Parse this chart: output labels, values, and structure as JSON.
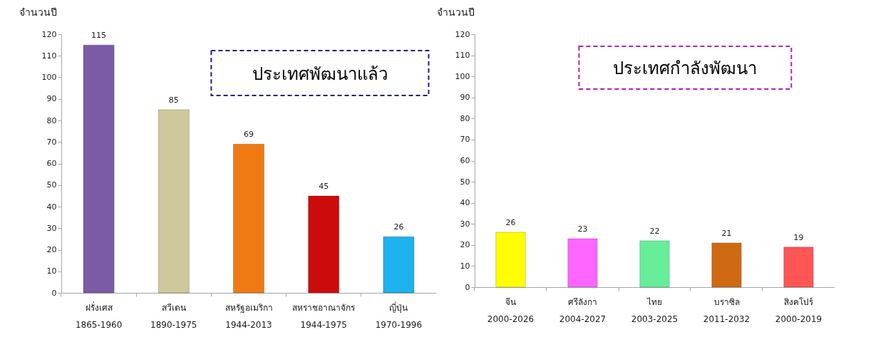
{
  "chart_data": [
    {
      "type": "bar",
      "title": "ประเทศพัฒนาแล้ว",
      "ylabel": "จำนวนปี",
      "categories": [
        "ฝรั่งเศส\n1865-1960",
        "สวีเดน\n1890-1975",
        "สหรัฐอเมริกา\n1944-2013",
        "สหราชอาณาจักร\n1944-1975",
        "ญี่ปุ่น\n1970-1996"
      ],
      "values": [
        115,
        85,
        69,
        45,
        26
      ],
      "colors": [
        "#7b5aa6",
        "#cfc89d",
        "#f07a12",
        "#cc0c0c",
        "#1cb2ee"
      ],
      "ylim": [
        0,
        120
      ],
      "yticks": [
        0,
        10,
        20,
        30,
        40,
        50,
        60,
        70,
        80,
        90,
        100,
        110,
        120
      ],
      "data_labels": true,
      "grid": false
    },
    {
      "type": "bar",
      "title": "ประเทศกำลังพัฒนา",
      "ylabel": "จำนวนปี",
      "categories": [
        "จีน\n2000-2026",
        "ศรีลังกา\n2004-2027",
        "ไทย\n2003-2025",
        "บราซิล\n2011-2032",
        "สิงคโปร์\n2000-2019"
      ],
      "values": [
        26,
        23,
        22,
        21,
        19
      ],
      "colors": [
        "#ffff00",
        "#ff66ff",
        "#66ee99",
        "#d06a12",
        "#ff5555"
      ],
      "ylim": [
        0,
        120
      ],
      "yticks": [
        0,
        10,
        20,
        30,
        40,
        50,
        60,
        70,
        80,
        90,
        100,
        110,
        120
      ],
      "data_labels": true,
      "grid": false
    }
  ]
}
